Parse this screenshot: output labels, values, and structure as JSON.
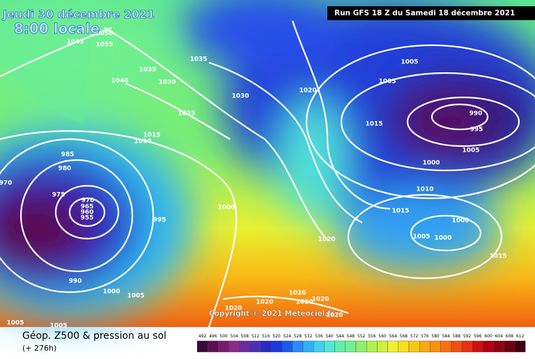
{
  "header": {
    "date": "Jeudi 30 décembre 2021",
    "time": "8:00 locale",
    "run": "Run GFS 18 Z du Samedi 18 décembre 2021"
  },
  "copyright": "Copyright © 2021 Meteociel.fr",
  "footer": {
    "title": "Géop. Z500 & pression au sol",
    "lead": "(+ 276h)"
  },
  "isobar_labels": [
    "1050",
    "1045",
    "1055",
    "1040",
    "1035",
    "1030",
    "1035",
    "1030",
    "1025",
    "1015",
    "1010",
    "1020",
    "985",
    "980",
    "975",
    "970",
    "970",
    "965",
    "960",
    "955",
    "995",
    "1000",
    "990",
    "1000",
    "1005",
    "1005",
    "1005",
    "1020",
    "1020",
    "1020",
    "1020",
    "1020",
    "1020",
    "1020",
    "1005",
    "1005",
    "990",
    "995",
    "1005",
    "1000",
    "1015",
    "1010",
    "1015",
    "1000",
    "1005",
    "1000",
    "1015"
  ],
  "scale": {
    "labels": [
      492,
      496,
      500,
      504,
      508,
      512,
      516,
      520,
      524,
      528,
      532,
      536,
      540,
      544,
      548,
      552,
      556,
      560,
      564,
      568,
      572,
      576,
      580,
      584,
      588,
      592,
      596,
      600,
      604,
      608,
      612
    ],
    "colors": [
      "#3a0a3a",
      "#5a1050",
      "#781a70",
      "#8a2a8a",
      "#6a2aa0",
      "#4a30b0",
      "#2a2ac8",
      "#1a3ae0",
      "#1a5af0",
      "#2a8af8",
      "#30b0f8",
      "#40d0f0",
      "#50e8d8",
      "#60f0b0",
      "#70f090",
      "#90f070",
      "#b0f050",
      "#d0f040",
      "#f0f030",
      "#f8e020",
      "#f8c818",
      "#f8a810",
      "#f89010",
      "#f87010",
      "#f05010",
      "#e83010",
      "#d01010",
      "#b00010",
      "#900010",
      "#700010",
      "#400010"
    ]
  }
}
